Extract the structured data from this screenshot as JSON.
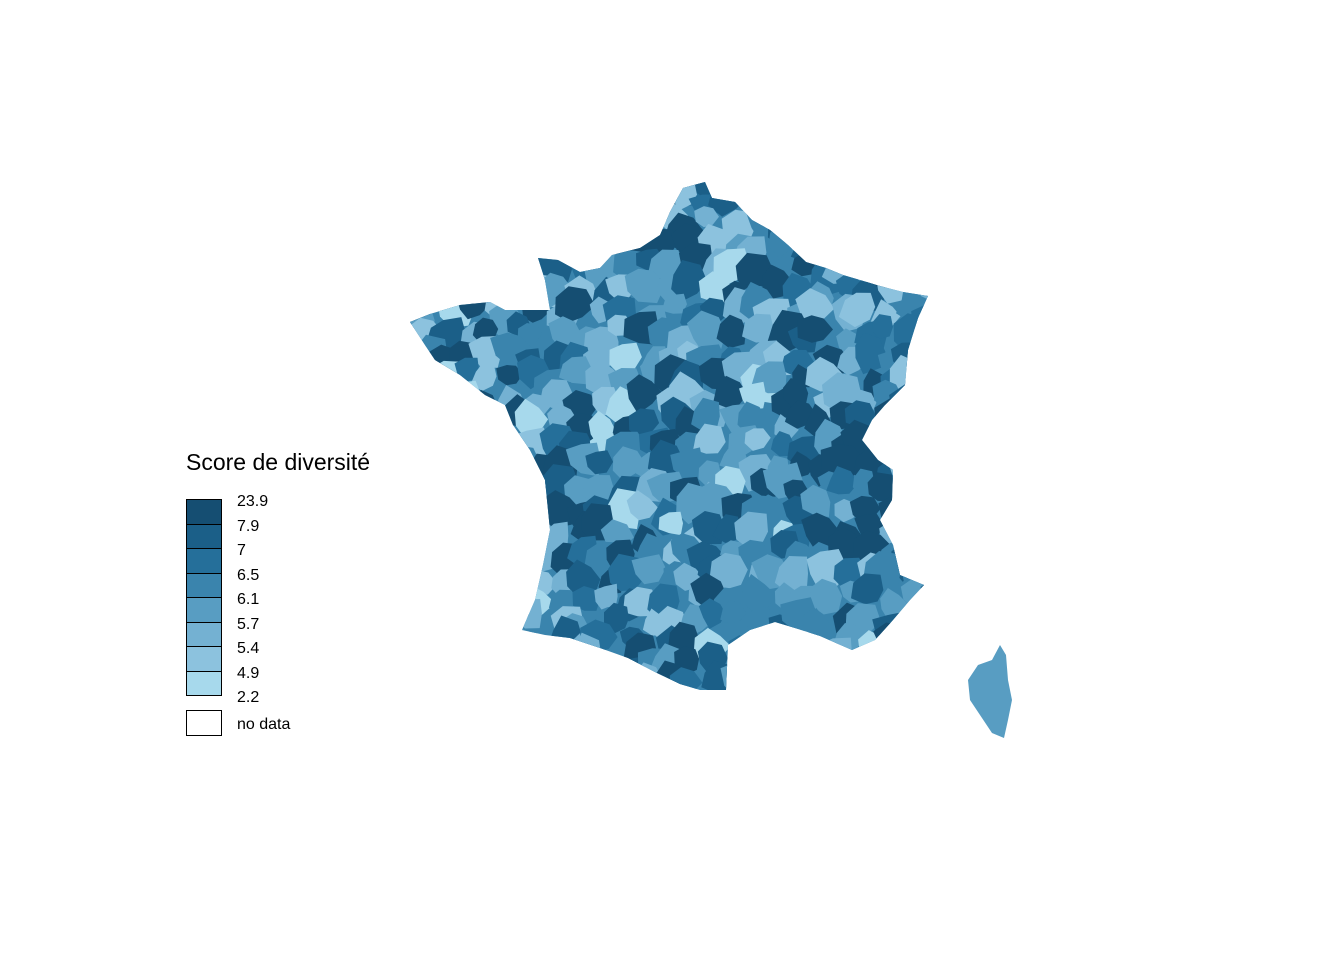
{
  "legend": {
    "title": "Score de diversité",
    "breaks": [
      "23.9",
      "7.9",
      "7",
      "6.5",
      "6.1",
      "5.7",
      "5.4",
      "4.9",
      "2.2"
    ],
    "no_data_label": "no data",
    "colors": [
      "#154e72",
      "#1b5f88",
      "#256f9a",
      "#3a84ad",
      "#589dc2",
      "#74b1d2",
      "#8cc2de",
      "#a7d9ec"
    ],
    "no_data_color": "#ffffff"
  }
}
